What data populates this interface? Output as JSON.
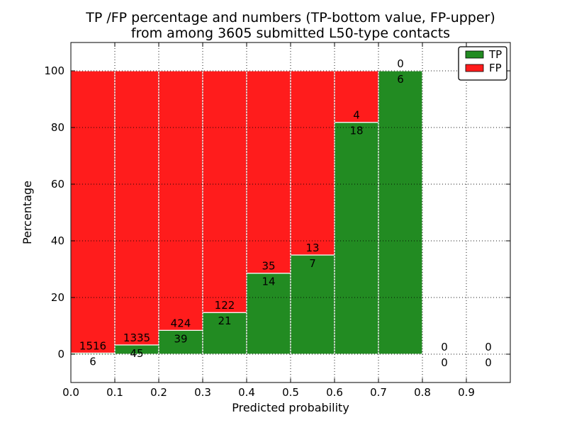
{
  "figure": {
    "title_line1": "TP /FP percentage and numbers (TP-bottom value, FP-upper)",
    "title_line2": "from among 3605 submitted L50-type contacts"
  },
  "chart_data": {
    "type": "bar",
    "subtype": "stacked-percentage-histogram",
    "title": "TP /FP percentage and numbers (TP-bottom value, FP-upper)\nfrom among 3605 submitted L50-type contacts",
    "xlabel": "Predicted probability",
    "ylabel": "Percentage",
    "xlim": [
      0.0,
      1.0
    ],
    "ylim": [
      -10,
      110
    ],
    "x_ticks": [
      {
        "value": 0.0,
        "label": "0.0"
      },
      {
        "value": 0.1,
        "label": "0.1"
      },
      {
        "value": 0.2,
        "label": "0.2"
      },
      {
        "value": 0.3,
        "label": "0.3"
      },
      {
        "value": 0.4,
        "label": "0.4"
      },
      {
        "value": 0.5,
        "label": "0.5"
      },
      {
        "value": 0.6,
        "label": "0.6"
      },
      {
        "value": 0.7,
        "label": "0.7"
      },
      {
        "value": 0.8,
        "label": "0.8"
      },
      {
        "value": 0.9,
        "label": "0.9"
      }
    ],
    "y_ticks": [
      {
        "value": 0,
        "label": "0"
      },
      {
        "value": 20,
        "label": "20"
      },
      {
        "value": 40,
        "label": "40"
      },
      {
        "value": 60,
        "label": "60"
      },
      {
        "value": 80,
        "label": "80"
      },
      {
        "value": 100,
        "label": "100"
      }
    ],
    "grid": true,
    "grid_style": "dotted",
    "total_contacts": 3605,
    "legend": {
      "position": "upper right",
      "entries": [
        {
          "label": "TP",
          "color": "#228b22"
        },
        {
          "label": "FP",
          "color": "#ff1c1c"
        }
      ]
    },
    "bins": [
      {
        "x0": 0.0,
        "x1": 0.1,
        "tp": 6,
        "fp": 1516,
        "tp_pct": 0.39
      },
      {
        "x0": 0.1,
        "x1": 0.2,
        "tp": 45,
        "fp": 1335,
        "tp_pct": 3.26
      },
      {
        "x0": 0.2,
        "x1": 0.3,
        "tp": 39,
        "fp": 424,
        "tp_pct": 8.42
      },
      {
        "x0": 0.3,
        "x1": 0.4,
        "tp": 21,
        "fp": 122,
        "tp_pct": 14.69
      },
      {
        "x0": 0.4,
        "x1": 0.5,
        "tp": 14,
        "fp": 35,
        "tp_pct": 28.57
      },
      {
        "x0": 0.5,
        "x1": 0.6,
        "tp": 7,
        "fp": 13,
        "tp_pct": 35.0
      },
      {
        "x0": 0.6,
        "x1": 0.7,
        "tp": 18,
        "fp": 4,
        "tp_pct": 81.82
      },
      {
        "x0": 0.7,
        "x1": 0.8,
        "tp": 6,
        "fp": 0,
        "tp_pct": 100.0
      },
      {
        "x0": 0.8,
        "x1": 0.9,
        "tp": 0,
        "fp": 0,
        "tp_pct": 0
      },
      {
        "x0": 0.9,
        "x1": 1.0,
        "tp": 0,
        "fp": 0,
        "tp_pct": 0
      }
    ]
  },
  "colors": {
    "tp": "#228b22",
    "fp": "#ff1c1c",
    "bar_edge": "#ffffff",
    "grid": "#000000",
    "spine": "#000000",
    "text": "#000000",
    "background": "#ffffff",
    "legend_background": "#ffffff",
    "legend_border": "#000000"
  }
}
